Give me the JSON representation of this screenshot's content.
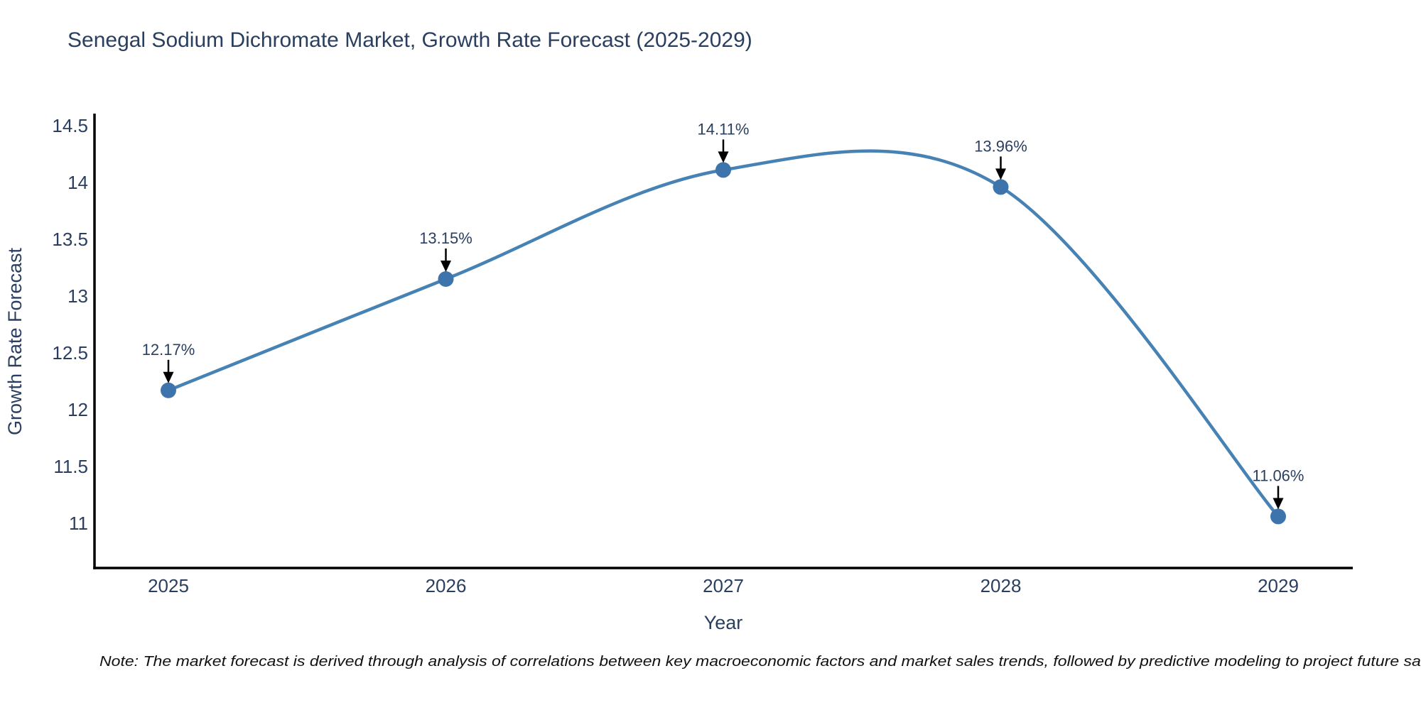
{
  "chart": {
    "colors": {
      "line": "#4682b4",
      "marker": "#3d74ab",
      "arrow": "#000000",
      "axis": "#000000",
      "text": "#2a3f5f",
      "note_text": "#111111",
      "background": "#ffffff"
    }
  },
  "chart_data": {
    "type": "line",
    "title": "Senegal Sodium Dichromate Market, Growth Rate Forecast (2025-2029)",
    "xlabel": "Year",
    "ylabel": "Growth Rate Forecast",
    "x": [
      2025,
      2026,
      2027,
      2028,
      2029
    ],
    "y": [
      12.17,
      13.15,
      14.11,
      13.96,
      11.06
    ],
    "point_labels": [
      "12.17%",
      "13.15%",
      "14.11%",
      "13.96%",
      "11.06%"
    ],
    "line_shape": "spline",
    "marker": "circle",
    "grid": false,
    "legend": "none",
    "xticks": [
      2025,
      2026,
      2027,
      2028,
      2029
    ],
    "yticks": [
      11,
      11.5,
      12,
      12.5,
      13,
      13.5,
      14,
      14.5
    ],
    "ylim": [
      10.6,
      14.6
    ],
    "xlim": [
      2024.73,
      2029.27
    ],
    "note": "Note: The market forecast is derived through analysis of correlations between key macroeconomic factors and market sales trends, followed by predictive modeling to project future sal"
  }
}
